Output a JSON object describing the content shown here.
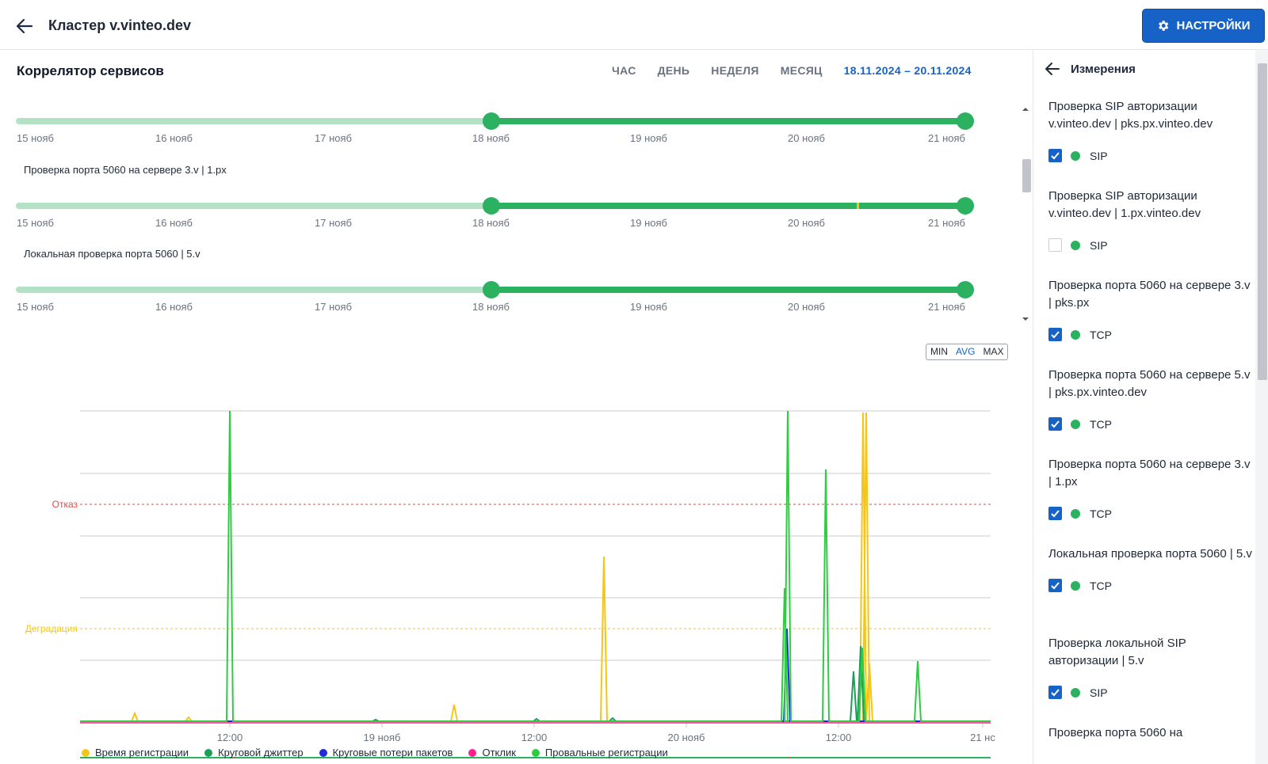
{
  "header": {
    "title": "Кластер v.vinteo.dev",
    "settings_label": "НАСТРОЙКИ"
  },
  "main": {
    "title": "Коррелятор сервисов",
    "periods": [
      "ЧАС",
      "ДЕНЬ",
      "НЕДЕЛЯ",
      "МЕСЯЦ"
    ],
    "range": "18.11.2024 – 20.11.2024"
  },
  "timelines": [
    {
      "name": "",
      "ticks": [
        "15 нояб",
        "16 нояб",
        "17 нояб",
        "18 нояб",
        "19 нояб",
        "20 нояб",
        "21 нояб"
      ]
    },
    {
      "name": "Проверка порта 5060 на сервере 3.v | 1.px",
      "ticks": [
        "15 нояб",
        "16 нояб",
        "17 нояб",
        "18 нояб",
        "19 нояб",
        "20 нояб",
        "21 нояб"
      ]
    },
    {
      "name": "Локальная проверка порта 5060 | 5.v",
      "ticks": [
        "15 нояб",
        "16 нояб",
        "17 нояб",
        "18 нояб",
        "19 нояб",
        "20 нояб",
        "21 нояб"
      ]
    }
  ],
  "mode": {
    "options": [
      "MIN",
      "AVG",
      "MAX"
    ],
    "selected": "AVG"
  },
  "chart_data": {
    "type": "line",
    "x_ticks": [
      "12:00",
      "19 нояб",
      "12:00",
      "20 нояб",
      "12:00",
      "21 нс"
    ],
    "thresholds": [
      {
        "label": "Отказ",
        "color": "#ef4444"
      },
      {
        "label": "Деградация",
        "color": "#f5c518"
      }
    ],
    "series": [
      {
        "name": "Время регистрации",
        "color": "#f5c518"
      },
      {
        "name": "Круговой джиттер",
        "color": "#1e9e5a"
      },
      {
        "name": "Круговые потери пакетов",
        "color": "#1f2bd6"
      },
      {
        "name": "Отклик",
        "color": "#ff1f8e"
      },
      {
        "name": "Провальные регистрации",
        "color": "#2ecc40"
      }
    ],
    "grid": true,
    "legend_position": "bottom"
  },
  "sidebar": {
    "title": "Измерения",
    "items": [
      {
        "title": "Проверка SIP авторизации v.vinteo.dev | pks.px.vinteo.dev",
        "proto": "SIP",
        "checked": true
      },
      {
        "title": "Проверка SIP авторизации v.vinteo.dev | 1.px.vinteo.dev",
        "proto": "SIP",
        "checked": false
      },
      {
        "title": "Проверка порта 5060 на сервере 3.v | pks.px",
        "proto": "TCP",
        "checked": true
      },
      {
        "title": "Проверка порта 5060 на сервере 5.v | pks.px.vinteo.dev",
        "proto": "TCP",
        "checked": true
      },
      {
        "title": "Проверка порта 5060 на сервере 3.v | 1.px",
        "proto": "TCP",
        "checked": true
      },
      {
        "title": "Локальная проверка порта 5060 | 5.v",
        "proto": "TCP",
        "checked": true
      },
      {
        "title": "Проверка локальной SIP авторизации | 5.v",
        "proto": "SIP",
        "checked": true
      },
      {
        "title": "Проверка порта 5060 на",
        "proto": "",
        "checked": true
      }
    ]
  }
}
